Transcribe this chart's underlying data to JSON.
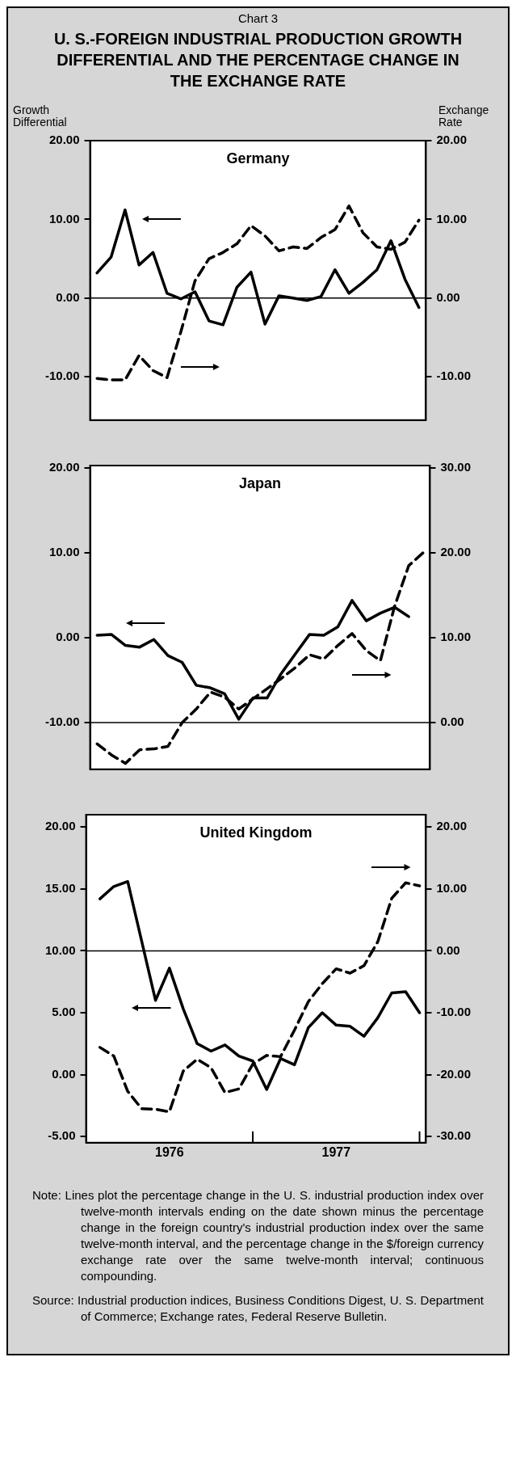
{
  "chart_data": [
    {
      "type": "other",
      "subtitle": "Chart 3",
      "title": "U. S.-FOREIGN INDUSTRIAL PRODUCTION GROWTH DIFFERENTIAL AND THE PERCENTAGE CHANGE IN THE EXCHANGE RATE"
    },
    {
      "type": "line",
      "title": "Germany",
      "ylabel": "Growth Differential",
      "y2label": "Exchange Rate",
      "categories": [
        null,
        null,
        null,
        null,
        null,
        null,
        null,
        null,
        null,
        null,
        null,
        null,
        null,
        null,
        null,
        null,
        null,
        null,
        null,
        null,
        null,
        null,
        null,
        null
      ],
      "ylim": [
        -15.5,
        20
      ],
      "yticks": [
        {
          "value": -10,
          "label": "-10.00"
        },
        {
          "value": 0,
          "label": "0.00"
        },
        {
          "value": 10,
          "label": "10.00"
        },
        {
          "value": 20,
          "label": "20.00"
        }
      ],
      "y2lim": [
        -15.5,
        20
      ],
      "y2ticks": [
        {
          "value": -10,
          "label": "-10.00"
        },
        {
          "value": 0,
          "label": "0.00"
        },
        {
          "value": 10,
          "label": "10.00"
        },
        {
          "value": 20,
          "label": "20.00"
        }
      ],
      "series": [
        {
          "color": "#000000",
          "line_style": "solid",
          "values": [
            3.2,
            5.2,
            11.2,
            4.2,
            5.8,
            0.6,
            -0.1,
            0.8,
            -2.9,
            -3.4,
            1.4,
            3.3,
            -3.3,
            0.3,
            0,
            -0.3,
            0.2,
            3.6,
            0.6,
            2.0,
            3.6,
            7.3,
            2.4,
            -1.2
          ]
        },
        {
          "color": "#000000",
          "line_style": "dashed",
          "axis": "y2",
          "values": [
            -10.2,
            -10.4,
            -10.4,
            -7.3,
            -9.2,
            -10.1,
            -4.2,
            2.2,
            5.0,
            5.8,
            6.9,
            9.2,
            7.9,
            6.0,
            6.5,
            6.3,
            7.7,
            8.7,
            11.7,
            8.3,
            6.5,
            6.2,
            7.1,
            9.9
          ]
        }
      ],
      "ref_lines": [
        {
          "axis": "y",
          "value": 0
        }
      ]
    },
    {
      "type": "line",
      "title": "Japan",
      "categories": [
        null,
        null,
        null,
        null,
        null,
        null,
        null,
        null,
        null,
        null,
        null,
        null,
        null,
        null,
        null,
        null,
        null,
        null,
        null,
        null,
        null,
        null,
        null,
        null
      ],
      "ylim": [
        -15.5,
        20.3
      ],
      "yticks": [
        {
          "value": -10,
          "label": "-10.00"
        },
        {
          "value": 0,
          "label": "0.00"
        },
        {
          "value": 10,
          "label": "10.00"
        },
        {
          "value": 20,
          "label": "20.00"
        }
      ],
      "y2lim": [
        -5.5,
        30.3
      ],
      "y2ticks": [
        {
          "value": 0,
          "label": "0.00"
        },
        {
          "value": 10,
          "label": "10.00"
        },
        {
          "value": 20,
          "label": "20.00"
        },
        {
          "value": 30,
          "label": "30.00"
        }
      ],
      "series": [
        {
          "color": "#000000",
          "line_style": "solid",
          "values": [
            0.3,
            0.4,
            -0.9,
            -1.1,
            -0.2,
            -2.1,
            -2.9,
            -5.6,
            -5.9,
            -6.6,
            -9.6,
            -7.1,
            -7.1,
            -4.2,
            -1.9,
            0.4,
            0.3,
            1.3,
            4.4,
            2.0,
            2.9,
            3.6,
            2.5,
            null
          ]
        },
        {
          "color": "#000000",
          "line_style": "dashed",
          "axis": "y2",
          "values": [
            -2.5,
            -3.8,
            -4.8,
            -3.2,
            -3.1,
            -2.8,
            0,
            1.6,
            3.6,
            3.0,
            1.6,
            2.8,
            4.0,
            5.2,
            6.5,
            8.0,
            7.5,
            9.1,
            10.5,
            8.5,
            7.3,
            13.7,
            18.5,
            20.0
          ]
        }
      ],
      "ref_lines": [
        {
          "axis": "y2",
          "value": 0
        }
      ]
    },
    {
      "type": "line",
      "title": "United Kingdom",
      "x": [
        "1976-02",
        "1976-03",
        "1976-04",
        "1976-05",
        "1976-06",
        "1976-07",
        "1976-08",
        "1976-09",
        "1976-10",
        "1976-11",
        "1976-12",
        "1977-01",
        "1977-02",
        "1977-03",
        "1977-04",
        "1977-05",
        "1977-06",
        "1977-07",
        "1977-08",
        "1977-09",
        "1977-10",
        "1977-11",
        "1977-12",
        "1978-01"
      ],
      "xlim": [
        "1976-01",
        "1978-01-15"
      ],
      "xticks": [
        {
          "value": "1976-07",
          "label": "1976"
        },
        {
          "value": "1977-01",
          "label": null
        },
        {
          "value": "1977-07",
          "label": "1977"
        },
        {
          "value": "1978-01",
          "label": null
        }
      ],
      "ylim": [
        -5.5,
        21
      ],
      "yticks": [
        {
          "value": -5,
          "label": "-5.00"
        },
        {
          "value": 0,
          "label": "0.00"
        },
        {
          "value": 5,
          "label": "5.00"
        },
        {
          "value": 10,
          "label": "10.00"
        },
        {
          "value": 15,
          "label": "15.00"
        },
        {
          "value": 20,
          "label": "20.00"
        }
      ],
      "y2lim": [
        -31,
        22
      ],
      "y2ticks": [
        {
          "value": -30,
          "label": "-30.00"
        },
        {
          "value": -20,
          "label": "-20.00"
        },
        {
          "value": -10,
          "label": "-10.00"
        },
        {
          "value": 0,
          "label": "0.00"
        },
        {
          "value": 10,
          "label": "10.00"
        },
        {
          "value": 20,
          "label": "20.00"
        }
      ],
      "series": [
        {
          "color": "#000000",
          "line_style": "solid",
          "values": [
            14.2,
            15.2,
            15.6,
            10.8,
            6.0,
            8.6,
            5.3,
            2.5,
            1.9,
            2.4,
            1.5,
            1.1,
            -1.2,
            1.3,
            0.8,
            3.8,
            5.0,
            4.0,
            3.9,
            3.1,
            4.6,
            6.6,
            6.7,
            5.0
          ]
        },
        {
          "color": "#000000",
          "line_style": "dashed",
          "axis": "y2",
          "values": [
            -15.6,
            -17.0,
            -22.7,
            -25.5,
            -25.6,
            -26.0,
            -19.4,
            -17.5,
            -18.9,
            -22.9,
            -22.3,
            -18.3,
            -16.9,
            -17.1,
            -12.8,
            -8.2,
            -5.3,
            -2.9,
            -3.6,
            -2.4,
            1.5,
            8.5,
            11.0,
            10.5
          ]
        }
      ],
      "ref_lines": [
        {
          "axis": "y2",
          "value": 0
        }
      ]
    },
    {
      "type": "other",
      "annotations": [
        "Note:  Lines plot the percentage change in the U. S. industrial production index over twelve-month intervals ending on the date shown minus the percentage change in the foreign country's industrial production index over the same twelve-month interval, and the percentage change in the $/foreign currency exchange rate over the same twelve-month interval; continuous compounding.",
        "Source:  Industrial production indices, Business Conditions Digest, U. S. Department of Commerce; Exchange rates, Federal Reserve Bulletin."
      ]
    }
  ]
}
